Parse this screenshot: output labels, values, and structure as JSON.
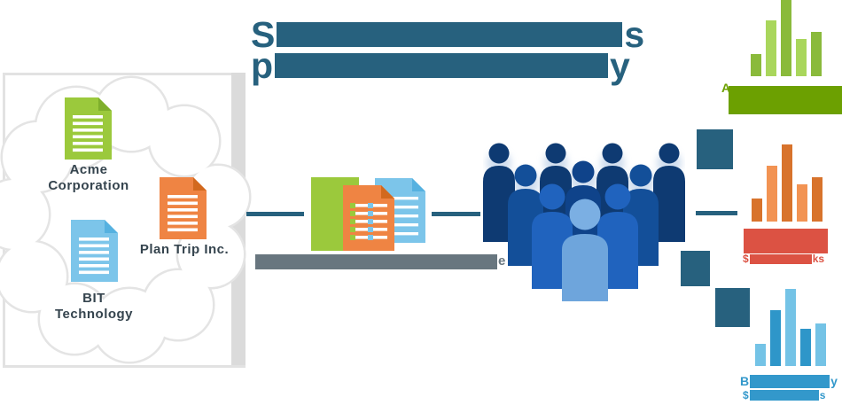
{
  "palette": {
    "teal": "#27617E",
    "caption_gray": "#68767F",
    "frame_gray": "#E2E2E2",
    "cloud_outline": "#E4E4E4",
    "doc_green": "#9BC93C",
    "doc_green_fold": "#7FAF2C",
    "doc_orange": "#EF8443",
    "doc_orange_fold": "#D2691E",
    "doc_blue": "#7CC5EA",
    "doc_blue_fold": "#55B1E0",
    "doc_label_text": "#35444E",
    "green_label_block": "#6CA001",
    "orange_label_block": "#DC5243",
    "blue_label_block": "#3398CB",
    "people_navy": "#0E3A72",
    "people_mid": "#134F99",
    "people_mid_dark": "#0F438A",
    "people_bright": "#2063BE",
    "people_light": "#6EA5DC",
    "people_light_head": "#7BAFE3",
    "people_shadow": "#C9D9EC"
  },
  "title": {
    "line1_start": "S",
    "line1_end": "s",
    "line2_start": "p",
    "line2_end": "y"
  },
  "cloud_documents": [
    {
      "label": "Acme Corporation"
    },
    {
      "label": "Plan Trip Inc."
    },
    {
      "label": "BIT Technology"
    }
  ],
  "caption": {
    "visible_end": "e"
  },
  "right_labels": {
    "green": {
      "visible_start": "A"
    },
    "orange": {
      "line2_start": "$",
      "line2_end": "ks"
    },
    "blue": {
      "line1_start": "B",
      "line1_end": "y",
      "line2_start": "$",
      "line2_end": "s"
    }
  },
  "chart_data": [
    {
      "type": "bar",
      "id": "green-sales-chart",
      "values": [
        25,
        63,
        86,
        42,
        50
      ],
      "bar_colors": [
        "#8ABA3B",
        "#A9D65C",
        "#8ABA3B",
        "#A9D65C",
        "#8ABA3B"
      ],
      "label_block_color": "#6CA001",
      "categories": [],
      "title": "",
      "note_label_visible_fragment": "A"
    },
    {
      "type": "bar",
      "id": "orange-sales-chart",
      "values": [
        26,
        63,
        87,
        42,
        50
      ],
      "bar_colors": [
        "#D8732C",
        "#F29353",
        "#D8732C",
        "#F29353",
        "#D8732C"
      ],
      "label_block_color": "#DC5243",
      "categories": [],
      "title": "",
      "note_label_visible_fragment": "$ ks"
    },
    {
      "type": "bar",
      "id": "blue-sales-chart",
      "values": [
        25,
        63,
        87,
        42,
        48
      ],
      "bar_colors": [
        "#74C3E6",
        "#2E96C9",
        "#74C3E6",
        "#2E96C9",
        "#74C3E6"
      ],
      "label_block_color": "#3398CB",
      "categories": [],
      "title": "",
      "note_label_visible_fragment": "B y / $ s"
    }
  ]
}
